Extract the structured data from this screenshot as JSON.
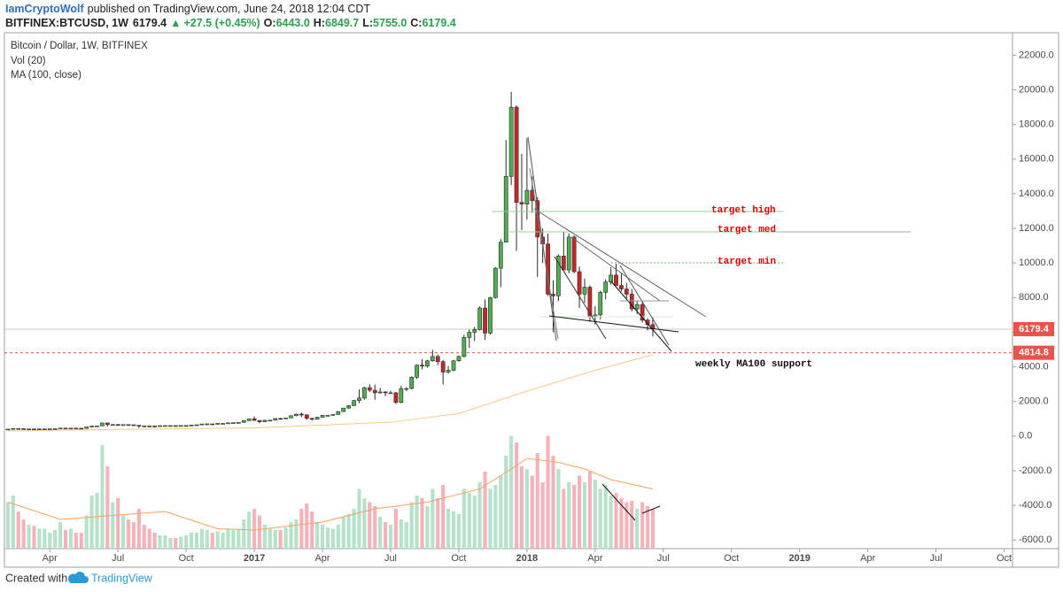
{
  "header": {
    "author": "IamCryptoWolf",
    "published": "published on TradingView.com, June 24, 2018 12:04 CDT",
    "symbol": "BITFINEX:BTCUSD, 1W",
    "last": "6179.4",
    "arrow": "▲",
    "change": "+27.5 (+0.45%)",
    "ohlc": [
      {
        "key": "O:",
        "value": "6443.0"
      },
      {
        "key": "H:",
        "value": "6849.7"
      },
      {
        "key": "L:",
        "value": "5755.0"
      },
      {
        "key": "C:",
        "value": "6179.4"
      }
    ]
  },
  "chart_data": {
    "type": "candlestick",
    "legend": [
      "Bitcoin / Dollar, 1W, BITFINEX",
      "Vol (20)",
      "MA (100, close)"
    ],
    "annotations": [
      "target high",
      "target med",
      "target min",
      "weekly MA100 support"
    ],
    "up_color": "#4caf50",
    "down_color": "#c62828",
    "border_color": "#2b2b2b",
    "vol_up_color": "#b5e2c9",
    "vol_down_color": "#f5b3b9",
    "ma_color": "#f6c88a",
    "vol_ma_color": "#f7a35c",
    "xlim": [
      -1.5,
      191.6
    ],
    "ylim": [
      -6500,
      23300
    ],
    "vol_ylim": [
      0,
      100
    ],
    "xticks": [
      {
        "value": 8,
        "label": "Apr"
      },
      {
        "value": 21,
        "label": "Jul"
      },
      {
        "value": 34,
        "label": "Oct"
      },
      {
        "value": 47,
        "label": "2017"
      },
      {
        "value": 60,
        "label": "Apr"
      },
      {
        "value": 73,
        "label": "Jul"
      },
      {
        "value": 86,
        "label": "Oct"
      },
      {
        "value": 99,
        "label": "2018"
      },
      {
        "value": 112,
        "label": "Apr"
      },
      {
        "value": 125,
        "label": "Jul"
      },
      {
        "value": 138,
        "label": "Oct"
      },
      {
        "value": 151,
        "label": "2019"
      },
      {
        "value": 164,
        "label": "Apr"
      },
      {
        "value": 177,
        "label": "Jul"
      },
      {
        "value": 190,
        "label": "Oct"
      }
    ],
    "yticks": [
      {
        "value": 22000,
        "label": "22000.0"
      },
      {
        "value": 20000,
        "label": "20000.0"
      },
      {
        "value": 18000,
        "label": "18000.0"
      },
      {
        "value": 16000,
        "label": "16000.0"
      },
      {
        "value": 14000,
        "label": "14000.0"
      },
      {
        "value": 12000,
        "label": "12000.0"
      },
      {
        "value": 10000,
        "label": "10000.0"
      },
      {
        "value": 8000,
        "label": "8000.0"
      },
      {
        "value": 6000,
        "label": "6000.0"
      },
      {
        "value": 4000,
        "label": "4000.0"
      },
      {
        "value": 2000,
        "label": "2000.0"
      },
      {
        "value": 0,
        "label": "0.0"
      },
      {
        "value": -2000,
        "label": "-2000.0"
      },
      {
        "value": -4000,
        "label": "-4000.0"
      },
      {
        "value": -6000,
        "label": "-6000.0"
      }
    ],
    "last_price": 6179.4,
    "support_price": 4814.8,
    "candles": [
      [
        380,
        412,
        365,
        405
      ],
      [
        405,
        450,
        395,
        438
      ],
      [
        438,
        448,
        410,
        433
      ],
      [
        433,
        440,
        400,
        412
      ],
      [
        412,
        420,
        405,
        414
      ],
      [
        414,
        418,
        402,
        410
      ],
      [
        410,
        420,
        405,
        416
      ],
      [
        416,
        425,
        412,
        420
      ],
      [
        420,
        425,
        415,
        421
      ],
      [
        421,
        430,
        418,
        428
      ],
      [
        428,
        465,
        425,
        462
      ],
      [
        462,
        468,
        445,
        455
      ],
      [
        455,
        465,
        440,
        460
      ],
      [
        460,
        462,
        448,
        456
      ],
      [
        456,
        458,
        436,
        444
      ],
      [
        444,
        535,
        440,
        530
      ],
      [
        530,
        590,
        515,
        580
      ],
      [
        580,
        600,
        565,
        590
      ],
      [
        590,
        780,
        585,
        760
      ],
      [
        760,
        770,
        550,
        660
      ],
      [
        660,
        690,
        620,
        670
      ],
      [
        670,
        700,
        630,
        650
      ],
      [
        650,
        680,
        640,
        665
      ],
      [
        665,
        670,
        645,
        655
      ],
      [
        655,
        660,
        620,
        625
      ],
      [
        625,
        630,
        470,
        590
      ],
      [
        590,
        600,
        575,
        585
      ],
      [
        585,
        590,
        565,
        580
      ],
      [
        580,
        585,
        570,
        575
      ],
      [
        575,
        610,
        570,
        605
      ],
      [
        605,
        615,
        600,
        608
      ],
      [
        608,
        612,
        605,
        608
      ],
      [
        608,
        612,
        595,
        602
      ],
      [
        602,
        615,
        598,
        612
      ],
      [
        612,
        620,
        605,
        615
      ],
      [
        615,
        645,
        612,
        640
      ],
      [
        640,
        658,
        630,
        655
      ],
      [
        655,
        705,
        650,
        700
      ],
      [
        700,
        740,
        690,
        705
      ],
      [
        705,
        715,
        690,
        700
      ],
      [
        700,
        750,
        695,
        735
      ],
      [
        735,
        745,
        725,
        735
      ],
      [
        735,
        770,
        730,
        765
      ],
      [
        765,
        780,
        750,
        775
      ],
      [
        775,
        795,
        770,
        790
      ],
      [
        790,
        900,
        785,
        895
      ],
      [
        895,
        1000,
        880,
        1000
      ],
      [
        1000,
        1150,
        880,
        905
      ],
      [
        905,
        920,
        750,
        830
      ],
      [
        830,
        930,
        820,
        920
      ],
      [
        920,
        930,
        880,
        920
      ],
      [
        920,
        1030,
        910,
        1020
      ],
      [
        1020,
        1060,
        950,
        1000
      ],
      [
        1000,
        1060,
        990,
        1050
      ],
      [
        1050,
        1190,
        1040,
        1180
      ],
      [
        1180,
        1290,
        1150,
        1270
      ],
      [
        1270,
        1350,
        1100,
        1230
      ],
      [
        1230,
        1260,
        960,
        1020
      ],
      [
        1020,
        1070,
        900,
        970
      ],
      [
        970,
        1100,
        960,
        1090
      ],
      [
        1090,
        1210,
        1080,
        1200
      ],
      [
        1200,
        1230,
        1170,
        1200
      ],
      [
        1200,
        1260,
        1190,
        1250
      ],
      [
        1250,
        1430,
        1240,
        1420
      ],
      [
        1420,
        1630,
        1410,
        1620
      ],
      [
        1620,
        1800,
        1580,
        1760
      ],
      [
        1760,
        2100,
        1740,
        2050
      ],
      [
        2050,
        2700,
        1900,
        2200
      ],
      [
        2200,
        2850,
        2100,
        2800
      ],
      [
        2800,
        3000,
        2550,
        2650
      ],
      [
        2650,
        2980,
        2100,
        2500
      ],
      [
        2500,
        2780,
        2450,
        2550
      ],
      [
        2550,
        2600,
        2300,
        2500
      ],
      [
        2500,
        2620,
        2450,
        2500
      ],
      [
        2500,
        2550,
        1850,
        1950
      ],
      [
        1950,
        2900,
        1900,
        2750
      ],
      [
        2750,
        2820,
        2600,
        2750
      ],
      [
        2750,
        3450,
        2700,
        3400
      ],
      [
        3400,
        4150,
        3300,
        4100
      ],
      [
        4100,
        4450,
        3850,
        4050
      ],
      [
        4050,
        4400,
        3950,
        4350
      ],
      [
        4350,
        4980,
        4300,
        4600
      ],
      [
        4600,
        4700,
        4100,
        4300
      ],
      [
        4300,
        4400,
        2980,
        3700
      ],
      [
        3700,
        4050,
        3600,
        3800
      ],
      [
        3800,
        4400,
        3750,
        4350
      ],
      [
        4350,
        4650,
        4300,
        4600
      ],
      [
        4600,
        5850,
        4550,
        5700
      ],
      [
        5700,
        6150,
        5100,
        6000
      ],
      [
        6000,
        6300,
        5500,
        6150
      ],
      [
        6150,
        7500,
        6100,
        7400
      ],
      [
        7400,
        7900,
        5550,
        5950
      ],
      [
        5950,
        8050,
        5850,
        8000
      ],
      [
        8000,
        9750,
        7950,
        9700
      ],
      [
        9700,
        11400,
        8600,
        11200
      ],
      [
        11200,
        17100,
        11200,
        15000
      ],
      [
        15000,
        19891,
        14500,
        19000
      ],
      [
        19000,
        19100,
        10700,
        13500
      ],
      [
        13500,
        16300,
        11900,
        13400
      ],
      [
        13400,
        17200,
        12500,
        14200
      ],
      [
        14200,
        15000,
        12900,
        13600
      ],
      [
        13600,
        13800,
        9200,
        11500
      ],
      [
        11500,
        12000,
        10000,
        11100
      ],
      [
        11100,
        11700,
        8100,
        8200
      ],
      [
        8200,
        9000,
        6000,
        8100
      ],
      [
        8100,
        10500,
        7800,
        10400
      ],
      [
        10400,
        11800,
        9600,
        9600
      ],
      [
        9600,
        11700,
        9400,
        11500
      ],
      [
        11500,
        11600,
        9400,
        9500
      ],
      [
        9500,
        9800,
        7400,
        8200
      ],
      [
        8200,
        9100,
        7700,
        8600
      ],
      [
        8600,
        8700,
        6600,
        6900
      ],
      [
        6900,
        7500,
        6450,
        7000
      ],
      [
        7000,
        8400,
        6750,
        8300
      ],
      [
        8300,
        9050,
        7900,
        8900
      ],
      [
        8900,
        9750,
        8750,
        9300
      ],
      [
        9300,
        9950,
        8700,
        8700
      ],
      [
        8700,
        9400,
        8350,
        8500
      ],
      [
        8500,
        8850,
        7950,
        8200
      ],
      [
        8200,
        8500,
        7200,
        7350
      ],
      [
        7350,
        7800,
        7050,
        7600
      ],
      [
        7600,
        7800,
        6550,
        6700
      ],
      [
        6700,
        6800,
        6100,
        6443
      ],
      [
        6443,
        6849.7,
        5755,
        6179.4
      ]
    ],
    "volume": [
      35,
      40,
      28,
      22,
      18,
      17,
      15,
      15,
      12,
      14,
      20,
      14,
      15,
      12,
      12,
      25,
      40,
      42,
      78,
      62,
      35,
      38,
      25,
      22,
      20,
      30,
      18,
      15,
      12,
      10,
      10,
      8,
      8,
      9,
      10,
      12,
      12,
      15,
      14,
      12,
      13,
      12,
      15,
      14,
      15,
      22,
      28,
      30,
      25,
      18,
      15,
      14,
      14,
      16,
      20,
      22,
      30,
      34,
      28,
      20,
      18,
      16,
      15,
      18,
      24,
      26,
      30,
      45,
      38,
      35,
      32,
      24,
      20,
      18,
      30,
      22,
      20,
      35,
      40,
      38,
      32,
      45,
      38,
      48,
      30,
      28,
      26,
      45,
      42,
      40,
      50,
      58,
      45,
      48,
      55,
      70,
      85,
      80,
      62,
      60,
      55,
      72,
      50,
      85,
      70,
      60,
      45,
      50,
      48,
      55,
      50,
      58,
      52,
      45,
      48,
      40,
      42,
      38,
      35,
      36,
      30,
      35,
      32,
      30
    ],
    "ma100": {
      "x": [
        0,
        20,
        47,
        73,
        86,
        99,
        112,
        123
      ],
      "values": [
        300,
        380,
        480,
        800,
        1300,
        2600,
        3800,
        4700
      ]
    },
    "vol_ma": {
      "x": [
        0,
        10,
        20,
        30,
        40,
        47,
        60,
        70,
        80,
        90,
        96,
        99,
        105,
        110,
        115,
        123
      ],
      "values": [
        35,
        22,
        25,
        28,
        15,
        14,
        20,
        30,
        35,
        45,
        60,
        68,
        65,
        60,
        52,
        45
      ]
    }
  },
  "footer": {
    "created": "Created with",
    "brand": "TradingView"
  }
}
